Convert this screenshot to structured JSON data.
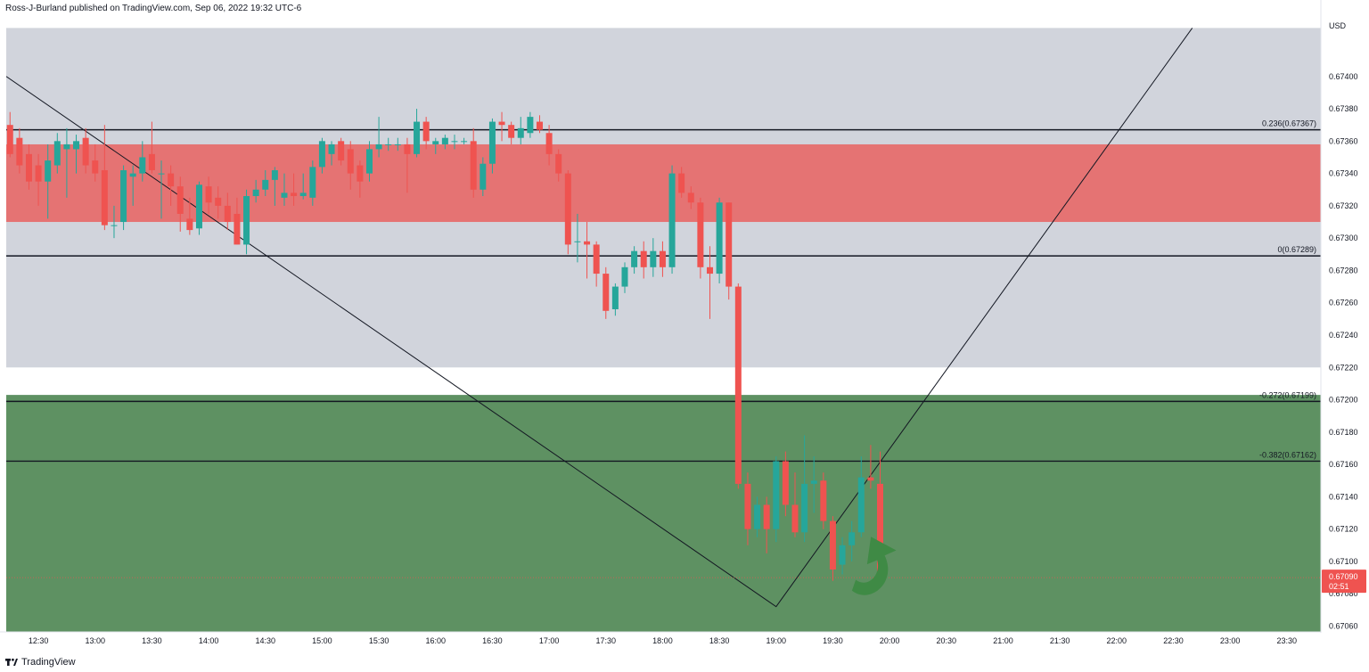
{
  "header": {
    "attribution": "Ross-J-Burland published on TradingView.com, Sep 06, 2022 19:32 UTC-6"
  },
  "footer": {
    "brand": "TradingView",
    "logo_icon": "tradingview-logo-icon"
  },
  "colors": {
    "up": "#26a69a",
    "down": "#ef5350",
    "gray_zone": "#d1d4dc",
    "red_zone": "#e57373",
    "green_zone": "#5e9162",
    "arrow": "#3f8a45",
    "price_badge": "#ef5350"
  },
  "price_badge": {
    "price": "0.67090",
    "countdown": "02:51"
  },
  "chart_data": {
    "type": "candlestick",
    "currency": "USD",
    "ylim": [
      0.6706,
      0.6742
    ],
    "xlim": [
      "12:13",
      "23:48"
    ],
    "candle_interval_minutes": 5,
    "y_ticks": [
      "0.67400",
      "0.67380",
      "0.67360",
      "0.67340",
      "0.67320",
      "0.67300",
      "0.67280",
      "0.67260",
      "0.67240",
      "0.67220",
      "0.67200",
      "0.67180",
      "0.67160",
      "0.67140",
      "0.67120",
      "0.67100",
      "0.67080",
      "0.67060"
    ],
    "x_ticks": [
      "12:30",
      "13:00",
      "13:30",
      "14:00",
      "14:30",
      "15:00",
      "15:30",
      "16:00",
      "16:30",
      "17:00",
      "17:30",
      "18:00",
      "18:30",
      "19:00",
      "19:30",
      "20:00",
      "20:30",
      "21:00",
      "21:30",
      "22:00",
      "22:30",
      "23:00",
      "23:30"
    ],
    "zones": [
      {
        "name": "gray",
        "from": 0.6722,
        "to": 0.6743
      },
      {
        "name": "red",
        "from": 0.6731,
        "to": 0.67358
      },
      {
        "name": "green",
        "from": 0.67055,
        "to": 0.67203
      }
    ],
    "fib_levels": [
      {
        "label": "0.236(0.67367)",
        "price": 0.67367
      },
      {
        "label": "0(0.67289)",
        "price": 0.67289
      },
      {
        "label": "-0.272(0.67199)",
        "price": 0.67199
      },
      {
        "label": "-0.382(0.67162)",
        "price": 0.67162
      }
    ],
    "trendlines": [
      [
        [
          "12:13",
          0.674
        ],
        [
          "19:00",
          0.67072
        ],
        [
          "22:40",
          0.6743
        ]
      ]
    ],
    "current_price": 0.6709,
    "candles": [
      {
        "t": "12:15",
        "o": 0.6737,
        "h": 0.67378,
        "l": 0.6735,
        "c": 0.67352
      },
      {
        "t": "12:20",
        "o": 0.67362,
        "h": 0.67368,
        "l": 0.6734,
        "c": 0.67345
      },
      {
        "t": "12:25",
        "o": 0.67352,
        "h": 0.67358,
        "l": 0.6733,
        "c": 0.67335
      },
      {
        "t": "12:30",
        "o": 0.67345,
        "h": 0.67352,
        "l": 0.6732,
        "c": 0.67335
      },
      {
        "t": "12:35",
        "o": 0.67335,
        "h": 0.67358,
        "l": 0.67312,
        "c": 0.67348
      },
      {
        "t": "12:40",
        "o": 0.67345,
        "h": 0.67365,
        "l": 0.6734,
        "c": 0.6736
      },
      {
        "t": "12:45",
        "o": 0.67355,
        "h": 0.67368,
        "l": 0.67325,
        "c": 0.67358
      },
      {
        "t": "12:50",
        "o": 0.67355,
        "h": 0.67364,
        "l": 0.6734,
        "c": 0.6736
      },
      {
        "t": "12:55",
        "o": 0.67362,
        "h": 0.67368,
        "l": 0.6734,
        "c": 0.67345
      },
      {
        "t": "13:00",
        "o": 0.67348,
        "h": 0.67358,
        "l": 0.67335,
        "c": 0.6734
      },
      {
        "t": "13:05",
        "o": 0.67342,
        "h": 0.6737,
        "l": 0.67305,
        "c": 0.67308
      },
      {
        "t": "13:10",
        "o": 0.67308,
        "h": 0.6732,
        "l": 0.673,
        "c": 0.67308
      },
      {
        "t": "13:15",
        "o": 0.6731,
        "h": 0.67345,
        "l": 0.67305,
        "c": 0.67342
      },
      {
        "t": "13:20",
        "o": 0.67338,
        "h": 0.67345,
        "l": 0.6732,
        "c": 0.6734
      },
      {
        "t": "13:25",
        "o": 0.6734,
        "h": 0.6736,
        "l": 0.67335,
        "c": 0.6735
      },
      {
        "t": "13:30",
        "o": 0.67352,
        "h": 0.67372,
        "l": 0.6734,
        "c": 0.67342
      },
      {
        "t": "13:35",
        "o": 0.6734,
        "h": 0.67348,
        "l": 0.67312,
        "c": 0.6734
      },
      {
        "t": "13:40",
        "o": 0.6734,
        "h": 0.67345,
        "l": 0.6732,
        "c": 0.67332
      },
      {
        "t": "13:45",
        "o": 0.67332,
        "h": 0.67338,
        "l": 0.67304,
        "c": 0.67315
      },
      {
        "t": "13:50",
        "o": 0.67312,
        "h": 0.67325,
        "l": 0.67302,
        "c": 0.67305
      },
      {
        "t": "13:55",
        "o": 0.67306,
        "h": 0.67335,
        "l": 0.67302,
        "c": 0.67333
      },
      {
        "t": "14:00",
        "o": 0.67332,
        "h": 0.67338,
        "l": 0.67315,
        "c": 0.67322
      },
      {
        "t": "14:05",
        "o": 0.67325,
        "h": 0.67332,
        "l": 0.67312,
        "c": 0.6732
      },
      {
        "t": "14:10",
        "o": 0.6732,
        "h": 0.67328,
        "l": 0.67305,
        "c": 0.6731
      },
      {
        "t": "14:15",
        "o": 0.67315,
        "h": 0.67325,
        "l": 0.67296,
        "c": 0.67296
      },
      {
        "t": "14:20",
        "o": 0.67296,
        "h": 0.6733,
        "l": 0.6729,
        "c": 0.67326
      },
      {
        "t": "14:25",
        "o": 0.67326,
        "h": 0.67336,
        "l": 0.67322,
        "c": 0.6733
      },
      {
        "t": "14:30",
        "o": 0.6733,
        "h": 0.67342,
        "l": 0.67326,
        "c": 0.67336
      },
      {
        "t": "14:35",
        "o": 0.67336,
        "h": 0.67344,
        "l": 0.6732,
        "c": 0.67342
      },
      {
        "t": "14:40",
        "o": 0.67325,
        "h": 0.6734,
        "l": 0.6732,
        "c": 0.67328
      },
      {
        "t": "14:45",
        "o": 0.67328,
        "h": 0.6734,
        "l": 0.6732,
        "c": 0.67326
      },
      {
        "t": "14:50",
        "o": 0.67326,
        "h": 0.6734,
        "l": 0.67324,
        "c": 0.67328
      },
      {
        "t": "14:55",
        "o": 0.67325,
        "h": 0.67348,
        "l": 0.6732,
        "c": 0.67344
      },
      {
        "t": "15:00",
        "o": 0.67344,
        "h": 0.67362,
        "l": 0.6734,
        "c": 0.6736
      },
      {
        "t": "15:05",
        "o": 0.67352,
        "h": 0.6736,
        "l": 0.67345,
        "c": 0.67358
      },
      {
        "t": "15:10",
        "o": 0.6736,
        "h": 0.67362,
        "l": 0.67345,
        "c": 0.67348
      },
      {
        "t": "15:15",
        "o": 0.67355,
        "h": 0.6736,
        "l": 0.6733,
        "c": 0.6734
      },
      {
        "t": "15:20",
        "o": 0.67345,
        "h": 0.67348,
        "l": 0.67325,
        "c": 0.67335
      },
      {
        "t": "15:25",
        "o": 0.6734,
        "h": 0.6736,
        "l": 0.67335,
        "c": 0.67355
      },
      {
        "t": "15:30",
        "o": 0.67355,
        "h": 0.67375,
        "l": 0.6735,
        "c": 0.67358
      },
      {
        "t": "15:35",
        "o": 0.67358,
        "h": 0.67362,
        "l": 0.67354,
        "c": 0.67358
      },
      {
        "t": "15:40",
        "o": 0.67358,
        "h": 0.67362,
        "l": 0.67354,
        "c": 0.67358
      },
      {
        "t": "15:45",
        "o": 0.67358,
        "h": 0.67362,
        "l": 0.67328,
        "c": 0.67352
      },
      {
        "t": "15:50",
        "o": 0.67352,
        "h": 0.6738,
        "l": 0.6735,
        "c": 0.67372
      },
      {
        "t": "15:55",
        "o": 0.67372,
        "h": 0.67375,
        "l": 0.67355,
        "c": 0.6736
      },
      {
        "t": "16:00",
        "o": 0.67358,
        "h": 0.67362,
        "l": 0.67352,
        "c": 0.6736
      },
      {
        "t": "16:05",
        "o": 0.67358,
        "h": 0.67364,
        "l": 0.67355,
        "c": 0.67362
      },
      {
        "t": "16:10",
        "o": 0.6736,
        "h": 0.67364,
        "l": 0.67355,
        "c": 0.6736
      },
      {
        "t": "16:15",
        "o": 0.6736,
        "h": 0.67362,
        "l": 0.67358,
        "c": 0.6736
      },
      {
        "t": "16:20",
        "o": 0.6736,
        "h": 0.67368,
        "l": 0.67325,
        "c": 0.6733
      },
      {
        "t": "16:25",
        "o": 0.6733,
        "h": 0.6735,
        "l": 0.67326,
        "c": 0.67346
      },
      {
        "t": "16:30",
        "o": 0.67346,
        "h": 0.67374,
        "l": 0.6734,
        "c": 0.67372
      },
      {
        "t": "16:35",
        "o": 0.67372,
        "h": 0.67378,
        "l": 0.6736,
        "c": 0.6737
      },
      {
        "t": "16:40",
        "o": 0.6737,
        "h": 0.67372,
        "l": 0.67358,
        "c": 0.67362
      },
      {
        "t": "16:45",
        "o": 0.67362,
        "h": 0.67375,
        "l": 0.67358,
        "c": 0.67368
      },
      {
        "t": "16:50",
        "o": 0.67365,
        "h": 0.67378,
        "l": 0.67362,
        "c": 0.67375
      },
      {
        "t": "16:55",
        "o": 0.67372,
        "h": 0.67376,
        "l": 0.67365,
        "c": 0.67367
      },
      {
        "t": "17:00",
        "o": 0.67365,
        "h": 0.6737,
        "l": 0.67345,
        "c": 0.67352
      },
      {
        "t": "17:05",
        "o": 0.67352,
        "h": 0.67355,
        "l": 0.67335,
        "c": 0.6734
      },
      {
        "t": "17:10",
        "o": 0.6734,
        "h": 0.67342,
        "l": 0.6729,
        "c": 0.67296
      },
      {
        "t": "17:15",
        "o": 0.67298,
        "h": 0.67315,
        "l": 0.67285,
        "c": 0.67298
      },
      {
        "t": "17:20",
        "o": 0.67298,
        "h": 0.6731,
        "l": 0.67275,
        "c": 0.67296
      },
      {
        "t": "17:25",
        "o": 0.67296,
        "h": 0.67298,
        "l": 0.6727,
        "c": 0.67278
      },
      {
        "t": "17:30",
        "o": 0.67278,
        "h": 0.67282,
        "l": 0.6725,
        "c": 0.67255
      },
      {
        "t": "17:35",
        "o": 0.67256,
        "h": 0.67272,
        "l": 0.67252,
        "c": 0.6727
      },
      {
        "t": "17:40",
        "o": 0.6727,
        "h": 0.67285,
        "l": 0.67266,
        "c": 0.67282
      },
      {
        "t": "17:45",
        "o": 0.67282,
        "h": 0.67295,
        "l": 0.67278,
        "c": 0.67292
      },
      {
        "t": "17:50",
        "o": 0.67292,
        "h": 0.67298,
        "l": 0.67275,
        "c": 0.67282
      },
      {
        "t": "17:55",
        "o": 0.67282,
        "h": 0.673,
        "l": 0.67276,
        "c": 0.67292
      },
      {
        "t": "18:00",
        "o": 0.67292,
        "h": 0.67298,
        "l": 0.67276,
        "c": 0.67282
      },
      {
        "t": "18:05",
        "o": 0.67282,
        "h": 0.67345,
        "l": 0.67278,
        "c": 0.6734
      },
      {
        "t": "18:10",
        "o": 0.6734,
        "h": 0.67344,
        "l": 0.67325,
        "c": 0.67328
      },
      {
        "t": "18:15",
        "o": 0.67328,
        "h": 0.67332,
        "l": 0.67318,
        "c": 0.67322
      },
      {
        "t": "18:20",
        "o": 0.67322,
        "h": 0.67325,
        "l": 0.67275,
        "c": 0.67282
      },
      {
        "t": "18:25",
        "o": 0.67282,
        "h": 0.67295,
        "l": 0.6725,
        "c": 0.67278
      },
      {
        "t": "18:30",
        "o": 0.67278,
        "h": 0.67325,
        "l": 0.67272,
        "c": 0.67322
      },
      {
        "t": "18:35",
        "o": 0.67322,
        "h": 0.67322,
        "l": 0.67262,
        "c": 0.6727
      },
      {
        "t": "18:40",
        "o": 0.6727,
        "h": 0.67272,
        "l": 0.67145,
        "c": 0.67148
      },
      {
        "t": "18:45",
        "o": 0.67148,
        "h": 0.67155,
        "l": 0.6711,
        "c": 0.6712
      },
      {
        "t": "18:50",
        "o": 0.6712,
        "h": 0.6714,
        "l": 0.67115,
        "c": 0.67135
      },
      {
        "t": "18:55",
        "o": 0.67135,
        "h": 0.6714,
        "l": 0.67105,
        "c": 0.6712
      },
      {
        "t": "19:00",
        "o": 0.6712,
        "h": 0.67165,
        "l": 0.67112,
        "c": 0.67162
      },
      {
        "t": "19:05",
        "o": 0.67162,
        "h": 0.67168,
        "l": 0.67128,
        "c": 0.67135
      },
      {
        "t": "19:10",
        "o": 0.67135,
        "h": 0.67155,
        "l": 0.67115,
        "c": 0.67118
      },
      {
        "t": "19:15",
        "o": 0.67118,
        "h": 0.67178,
        "l": 0.67112,
        "c": 0.67148
      },
      {
        "t": "19:20",
        "o": 0.67148,
        "h": 0.67165,
        "l": 0.6713,
        "c": 0.6715
      },
      {
        "t": "19:25",
        "o": 0.6715,
        "h": 0.67155,
        "l": 0.6712,
        "c": 0.67125
      },
      {
        "t": "19:30",
        "o": 0.67125,
        "h": 0.67128,
        "l": 0.67088,
        "c": 0.67095
      },
      {
        "t": "19:35",
        "o": 0.67098,
        "h": 0.67115,
        "l": 0.67092,
        "c": 0.6711
      },
      {
        "t": "19:40",
        "o": 0.6711,
        "h": 0.67125,
        "l": 0.671,
        "c": 0.67118
      },
      {
        "t": "19:45",
        "o": 0.67118,
        "h": 0.67165,
        "l": 0.67115,
        "c": 0.67152
      },
      {
        "t": "19:50",
        "o": 0.67152,
        "h": 0.67172,
        "l": 0.67145,
        "c": 0.6715
      },
      {
        "t": "19:55",
        "o": 0.67148,
        "h": 0.67168,
        "l": 0.67088,
        "c": 0.6709
      }
    ]
  }
}
